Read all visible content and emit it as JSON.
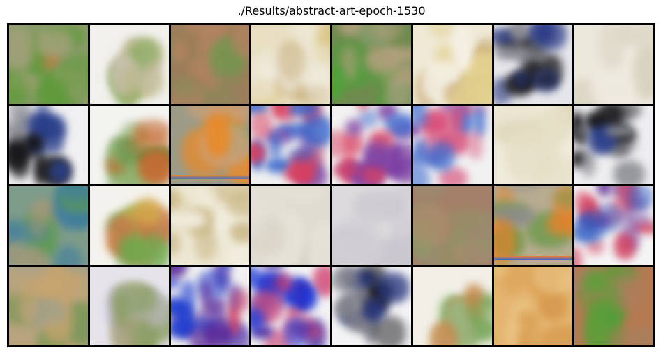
{
  "figure": {
    "title": "./Results/abstract-art-epoch-1530"
  },
  "grid": {
    "rows": 4,
    "cols": 8,
    "tiles": [
      {
        "style": "green-field",
        "colors": [
          "#8a9b6a",
          "#5e9a3a",
          "#a7a27c",
          "#c47b3a"
        ]
      },
      {
        "style": "faint-center",
        "colors": [
          "#f1f0ec",
          "#b7b37c",
          "#7aa64f",
          "#c9c2b0"
        ]
      },
      {
        "style": "brown-green",
        "colors": [
          "#9c7e5a",
          "#6e9a4a",
          "#b38461",
          "#8a8a5c"
        ]
      },
      {
        "style": "cream-yellow",
        "colors": [
          "#e8dfc2",
          "#d8c27c",
          "#c8b080",
          "#f0ece0"
        ]
      },
      {
        "style": "green-vertical",
        "colors": [
          "#6f8a4e",
          "#4ea33c",
          "#b0a07c",
          "#8a9d6e"
        ]
      },
      {
        "style": "cream-yellow",
        "colors": [
          "#efe9d6",
          "#e2cf8c",
          "#c9ad7a",
          "#f5f1e6"
        ]
      },
      {
        "style": "dark-blue",
        "colors": [
          "#e6e6ea",
          "#1a1a1e",
          "#2b3b86",
          "#8c8d96"
        ]
      },
      {
        "style": "pale",
        "colors": [
          "#ece8dc",
          "#e4dfd0",
          "#d8d2c0",
          "#efeae0"
        ]
      },
      {
        "style": "dark-blue",
        "colors": [
          "#f0f0f2",
          "#151518",
          "#2a3f8a",
          "#8f9096"
        ]
      },
      {
        "style": "faint-center",
        "colors": [
          "#f3f3f0",
          "#5b8a3e",
          "#c56b32",
          "#8eaf6a"
        ]
      },
      {
        "style": "stripes",
        "colors": [
          "#9b9b86",
          "#7ea654",
          "#c8a07a",
          "#e88a2a"
        ]
      },
      {
        "style": "vivid-purple",
        "colors": [
          "#f0f0f0",
          "#7a3da0",
          "#2a5cc8",
          "#d84060"
        ]
      },
      {
        "style": "vivid-purple",
        "colors": [
          "#f2f2f2",
          "#7b3ea2",
          "#2b5fcc",
          "#da4262"
        ]
      },
      {
        "style": "vivid-purple",
        "colors": [
          "#f1f1f1",
          "#8a4aa8",
          "#3a6ad0",
          "#d8507a"
        ]
      },
      {
        "style": "pale",
        "colors": [
          "#f0ebdc",
          "#e6dfc6",
          "#ddd4b6",
          "#f4f0e4"
        ]
      },
      {
        "style": "dark-blue",
        "colors": [
          "#eeeef0",
          "#17171a",
          "#2a3d88",
          "#8d8e94"
        ]
      },
      {
        "style": "teal-green",
        "colors": [
          "#7e9c8a",
          "#3f7e9c",
          "#5e9a54",
          "#a49878"
        ]
      },
      {
        "style": "faint-center",
        "colors": [
          "#f4f2ec",
          "#d3a84a",
          "#6ea84e",
          "#c77848"
        ]
      },
      {
        "style": "cream-yellow",
        "colors": [
          "#ede7d3",
          "#e0d6ae",
          "#cbb98a",
          "#f3efe2"
        ]
      },
      {
        "style": "pale",
        "colors": [
          "#e0dcd2",
          "#d8d3c6",
          "#cfc9bb",
          "#e6e2d8"
        ]
      },
      {
        "style": "pale",
        "colors": [
          "#dcdadc",
          "#d3d0d6",
          "#cac7cf",
          "#e4e2e4"
        ]
      },
      {
        "style": "brown-green",
        "colors": [
          "#a48068",
          "#8c9a66",
          "#b48c6a",
          "#9a8c70"
        ]
      },
      {
        "style": "stripes",
        "colors": [
          "#b7ab90",
          "#6e9a4c",
          "#8c8c8c",
          "#e6822a"
        ]
      },
      {
        "style": "vivid-purple",
        "colors": [
          "#f4f4f4",
          "#6a3a98",
          "#2a5ac4",
          "#d44260"
        ]
      },
      {
        "style": "green-field",
        "colors": [
          "#b8a47e",
          "#6e944e",
          "#c8a46e",
          "#a0a08a"
        ]
      },
      {
        "style": "faint-center",
        "colors": [
          "#e6e4ea",
          "#a6a07a",
          "#8ea06a",
          "#c4bfd0"
        ]
      },
      {
        "style": "vivid-purple",
        "colors": [
          "#f0f0f0",
          "#5a2a9a",
          "#1e3ed0",
          "#d03a60"
        ]
      },
      {
        "style": "vivid-purple",
        "colors": [
          "#f2f2f4",
          "#4a2aa0",
          "#1a36d8",
          "#d03a6a"
        ]
      },
      {
        "style": "dark-blue",
        "colors": [
          "#f4f4f6",
          "#0e0e12",
          "#22307a",
          "#7c7d88"
        ]
      },
      {
        "style": "faint-center",
        "colors": [
          "#f1efe6",
          "#6ea04e",
          "#c8884a",
          "#9cb47e"
        ]
      },
      {
        "style": "orange-tan",
        "colors": [
          "#e4b470",
          "#d69a4e",
          "#ecc888",
          "#c88a46"
        ]
      },
      {
        "style": "green-brown",
        "colors": [
          "#b47a52",
          "#5e9e3a",
          "#4ea03a",
          "#a88060"
        ]
      }
    ]
  }
}
